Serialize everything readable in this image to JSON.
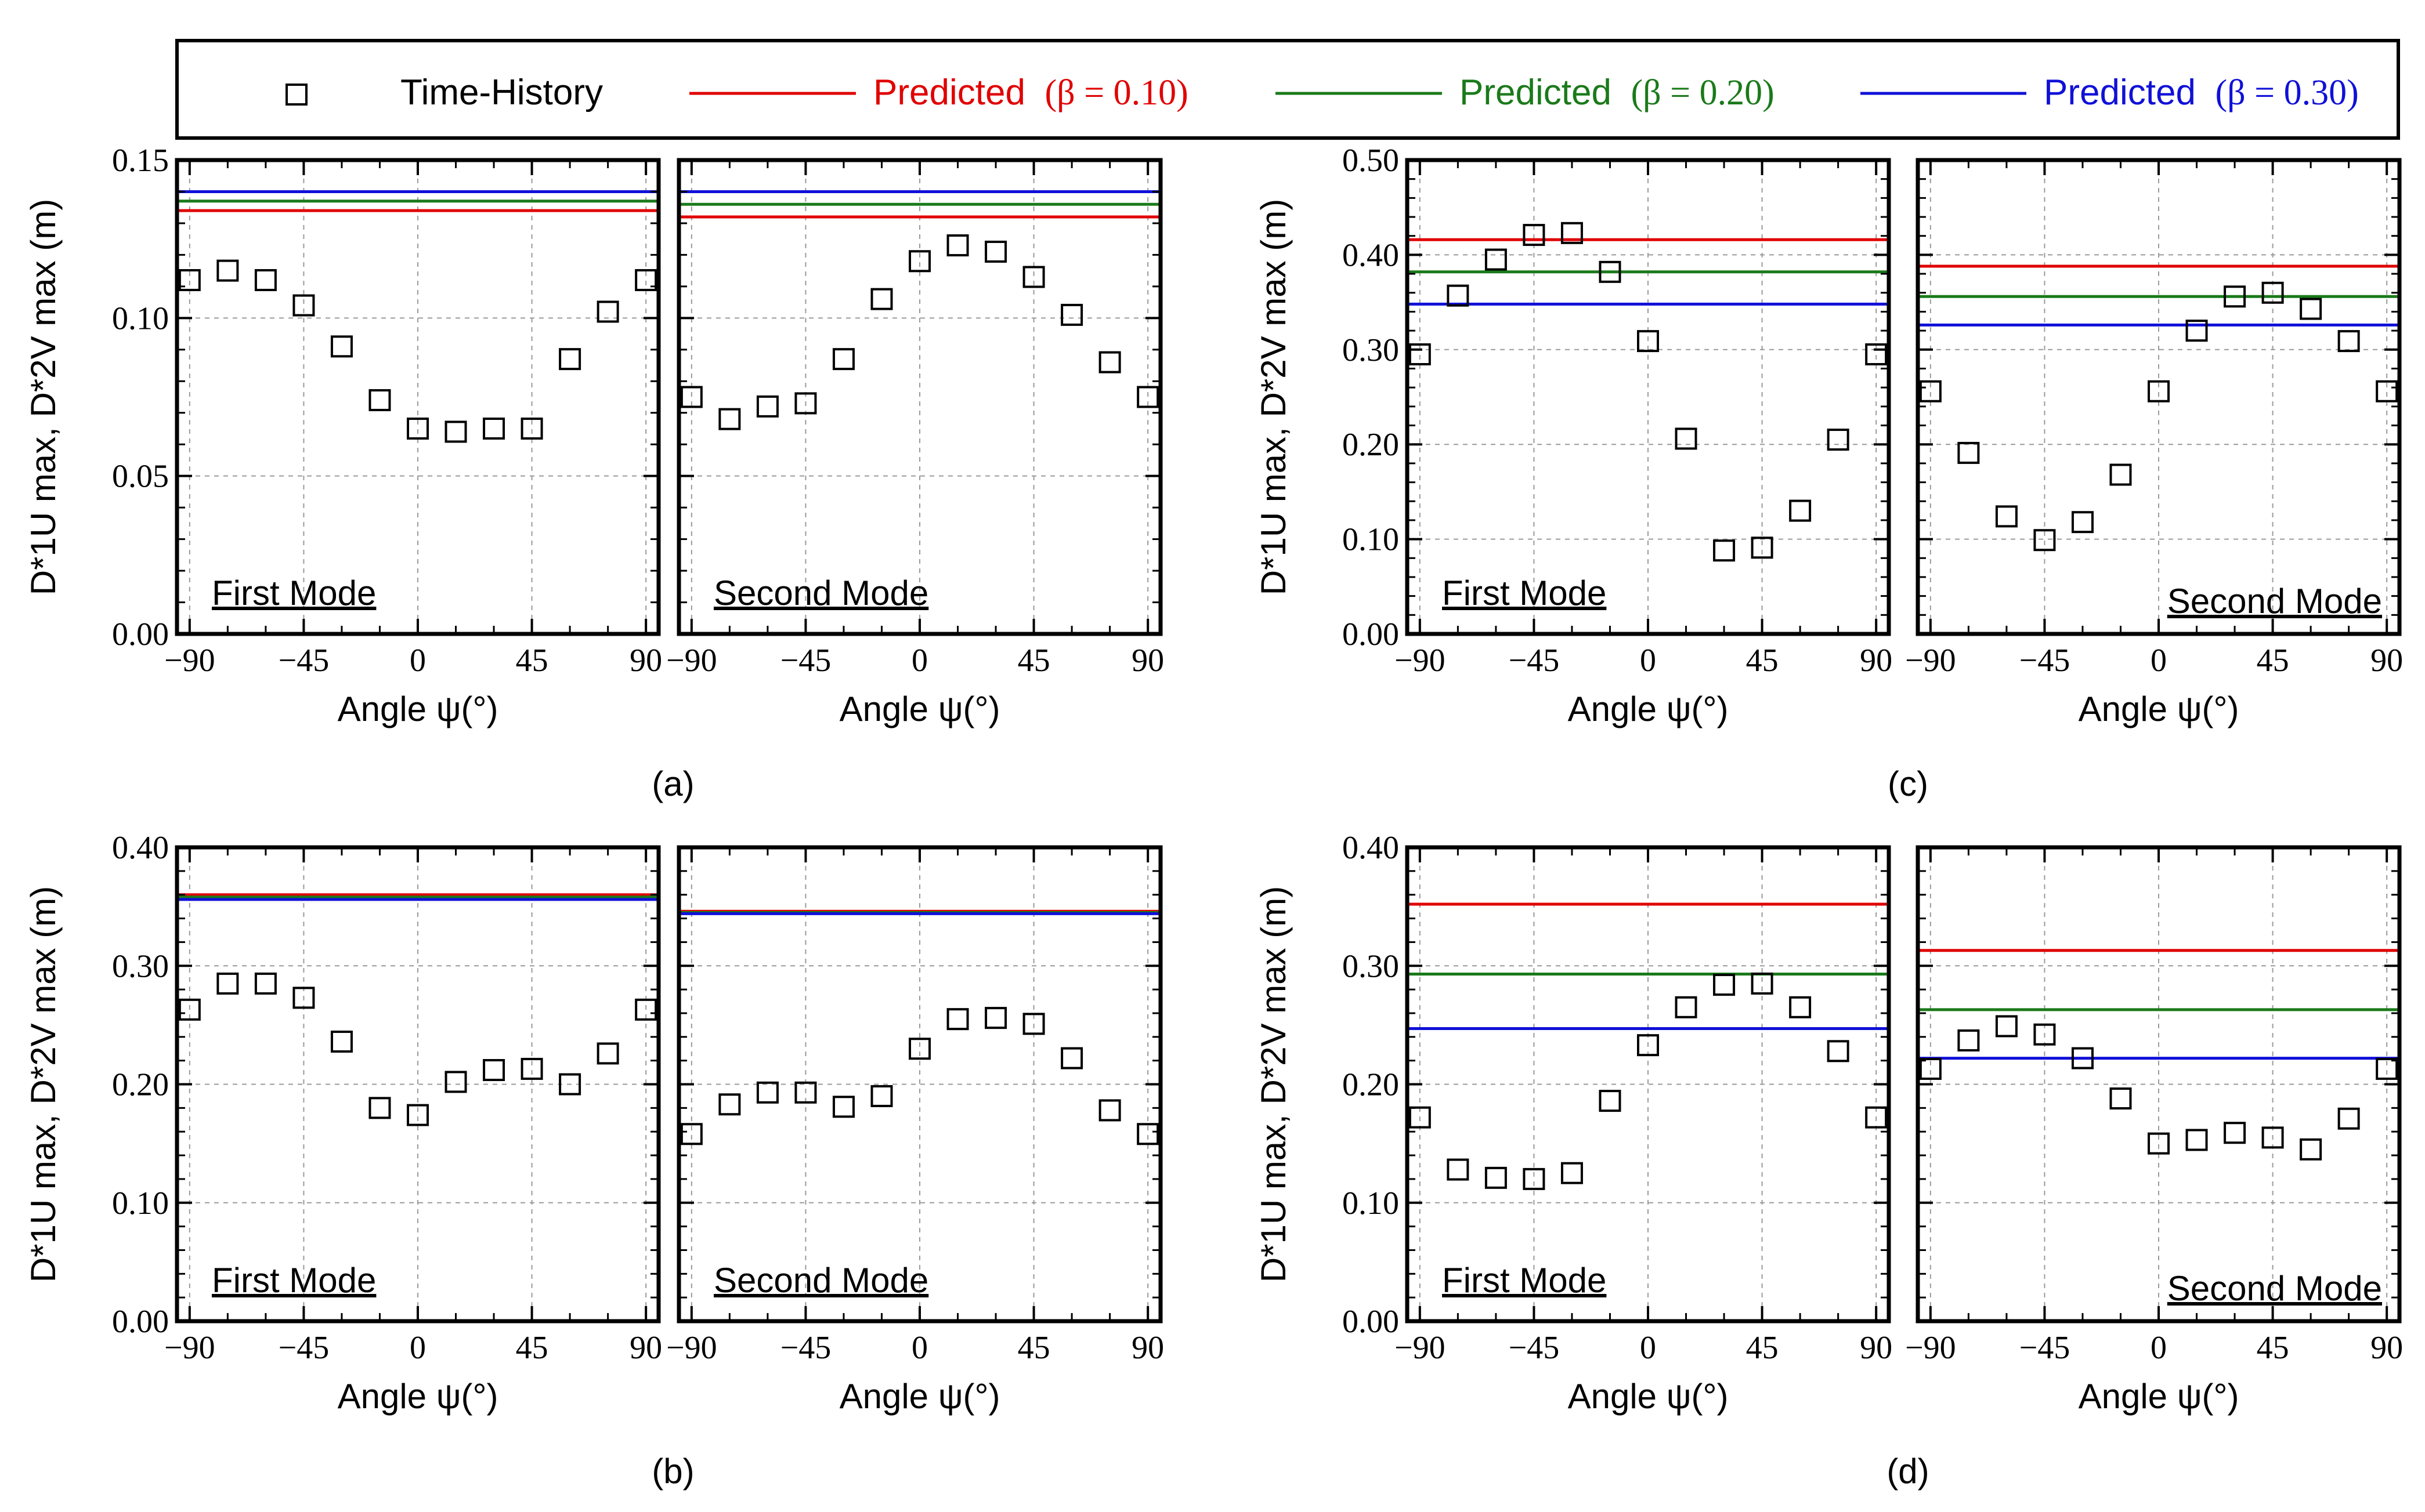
{
  "legend": {
    "marker_label": "Time-History",
    "predicted_label": "Predicted",
    "items": [
      {
        "key": "p10",
        "beta": "(β = 0.10)",
        "color": "#e00000"
      },
      {
        "key": "p20",
        "beta": "(β = 0.20)",
        "color": "#1a7a1a"
      },
      {
        "key": "p30",
        "beta": "(β = 0.30)",
        "color": "#1010d8"
      }
    ]
  },
  "colors": {
    "red": "#e00000",
    "green": "#1a7a1a",
    "blue": "#1010d8",
    "axis": "#000000",
    "grid": "#9a9a9a"
  },
  "axes_text": {
    "xlabel": "Angle ψ(°)",
    "ylabel": "D*1U max, D*2V max (m)",
    "xticks": [
      "−90",
      "−45",
      "0",
      "45",
      "90"
    ]
  },
  "chart_data": [
    {
      "id": "a",
      "caption": "(a)",
      "type": "scatter",
      "ylim": [
        0,
        0.15
      ],
      "yticks": [
        "0.00",
        "0.05",
        "0.10",
        "0.15"
      ],
      "xlim": [
        -95,
        95
      ],
      "x": [
        -90,
        -75,
        -60,
        -45,
        -30,
        -15,
        0,
        15,
        30,
        45,
        60,
        75,
        90
      ],
      "panels": [
        {
          "label": "First Mode",
          "label_pos": "bottom-left",
          "values": [
            0.112,
            0.115,
            0.112,
            0.104,
            0.091,
            0.074,
            0.065,
            0.064,
            0.065,
            0.065,
            0.087,
            0.102,
            0.112
          ],
          "predicted": {
            "p10": 0.134,
            "p20": 0.137,
            "p30": 0.14
          }
        },
        {
          "label": "Second Mode",
          "label_pos": "bottom-left",
          "values": [
            0.075,
            0.068,
            0.072,
            0.073,
            0.087,
            0.106,
            0.118,
            0.123,
            0.121,
            0.113,
            0.101,
            0.086,
            0.075
          ],
          "predicted": {
            "p10": 0.132,
            "p20": 0.136,
            "p30": 0.14
          }
        }
      ]
    },
    {
      "id": "c",
      "caption": "(c)",
      "type": "scatter",
      "ylim": [
        0,
        0.5
      ],
      "yticks": [
        "0.00",
        "0.10",
        "0.20",
        "0.30",
        "0.40",
        "0.50"
      ],
      "xlim": [
        -95,
        95
      ],
      "x": [
        -90,
        -75,
        -60,
        -45,
        -30,
        -15,
        0,
        15,
        30,
        45,
        60,
        75,
        90
      ],
      "panels": [
        {
          "label": "First Mode",
          "label_pos": "bottom-left",
          "values": [
            0.295,
            0.357,
            0.395,
            0.421,
            0.423,
            0.382,
            0.309,
            0.206,
            0.088,
            0.091,
            0.13,
            0.205,
            0.295
          ],
          "predicted": {
            "p10": 0.416,
            "p20": 0.382,
            "p30": 0.348
          }
        },
        {
          "label": "Second Mode",
          "label_pos": "bottom-right",
          "values": [
            0.256,
            0.191,
            0.124,
            0.099,
            0.118,
            0.168,
            0.256,
            0.32,
            0.356,
            0.36,
            0.343,
            0.309,
            0.256
          ],
          "predicted": {
            "p10": 0.388,
            "p20": 0.356,
            "p30": 0.326
          }
        }
      ]
    },
    {
      "id": "b",
      "caption": "(b)",
      "type": "scatter",
      "ylim": [
        0,
        0.4
      ],
      "yticks": [
        "0.00",
        "0.10",
        "0.20",
        "0.30",
        "0.40"
      ],
      "xlim": [
        -95,
        95
      ],
      "x": [
        -90,
        -75,
        -60,
        -45,
        -30,
        -15,
        0,
        15,
        30,
        45,
        60,
        75,
        90
      ],
      "panels": [
        {
          "label": "First Mode",
          "label_pos": "bottom-left",
          "values": [
            0.263,
            0.285,
            0.285,
            0.273,
            0.236,
            0.18,
            0.174,
            0.202,
            0.212,
            0.213,
            0.2,
            0.226,
            0.263
          ],
          "predicted": {
            "p10": 0.36,
            "p20": 0.358,
            "p30": 0.356
          }
        },
        {
          "label": "Second Mode",
          "label_pos": "bottom-left",
          "values": [
            0.158,
            0.183,
            0.193,
            0.193,
            0.181,
            0.19,
            0.23,
            0.255,
            0.256,
            0.251,
            0.222,
            0.178,
            0.158
          ],
          "predicted": {
            "p10": 0.346,
            "p20": 0.345,
            "p30": 0.344
          }
        }
      ]
    },
    {
      "id": "d",
      "caption": "(d)",
      "type": "scatter",
      "ylim": [
        0,
        0.4
      ],
      "yticks": [
        "0.00",
        "0.10",
        "0.20",
        "0.30",
        "0.40"
      ],
      "xlim": [
        -95,
        95
      ],
      "x": [
        -90,
        -75,
        -60,
        -45,
        -30,
        -15,
        0,
        15,
        30,
        45,
        60,
        75,
        90
      ],
      "panels": [
        {
          "label": "First Mode",
          "label_pos": "bottom-left",
          "values": [
            0.172,
            0.128,
            0.121,
            0.12,
            0.125,
            0.186,
            0.233,
            0.265,
            0.284,
            0.285,
            0.265,
            0.228,
            0.172
          ],
          "predicted": {
            "p10": 0.352,
            "p20": 0.293,
            "p30": 0.247
          }
        },
        {
          "label": "Second Mode",
          "label_pos": "bottom-right",
          "values": [
            0.213,
            0.237,
            0.249,
            0.242,
            0.222,
            0.188,
            0.15,
            0.153,
            0.159,
            0.155,
            0.145,
            0.171,
            0.213
          ],
          "predicted": {
            "p10": 0.313,
            "p20": 0.263,
            "p30": 0.222
          }
        }
      ]
    }
  ]
}
